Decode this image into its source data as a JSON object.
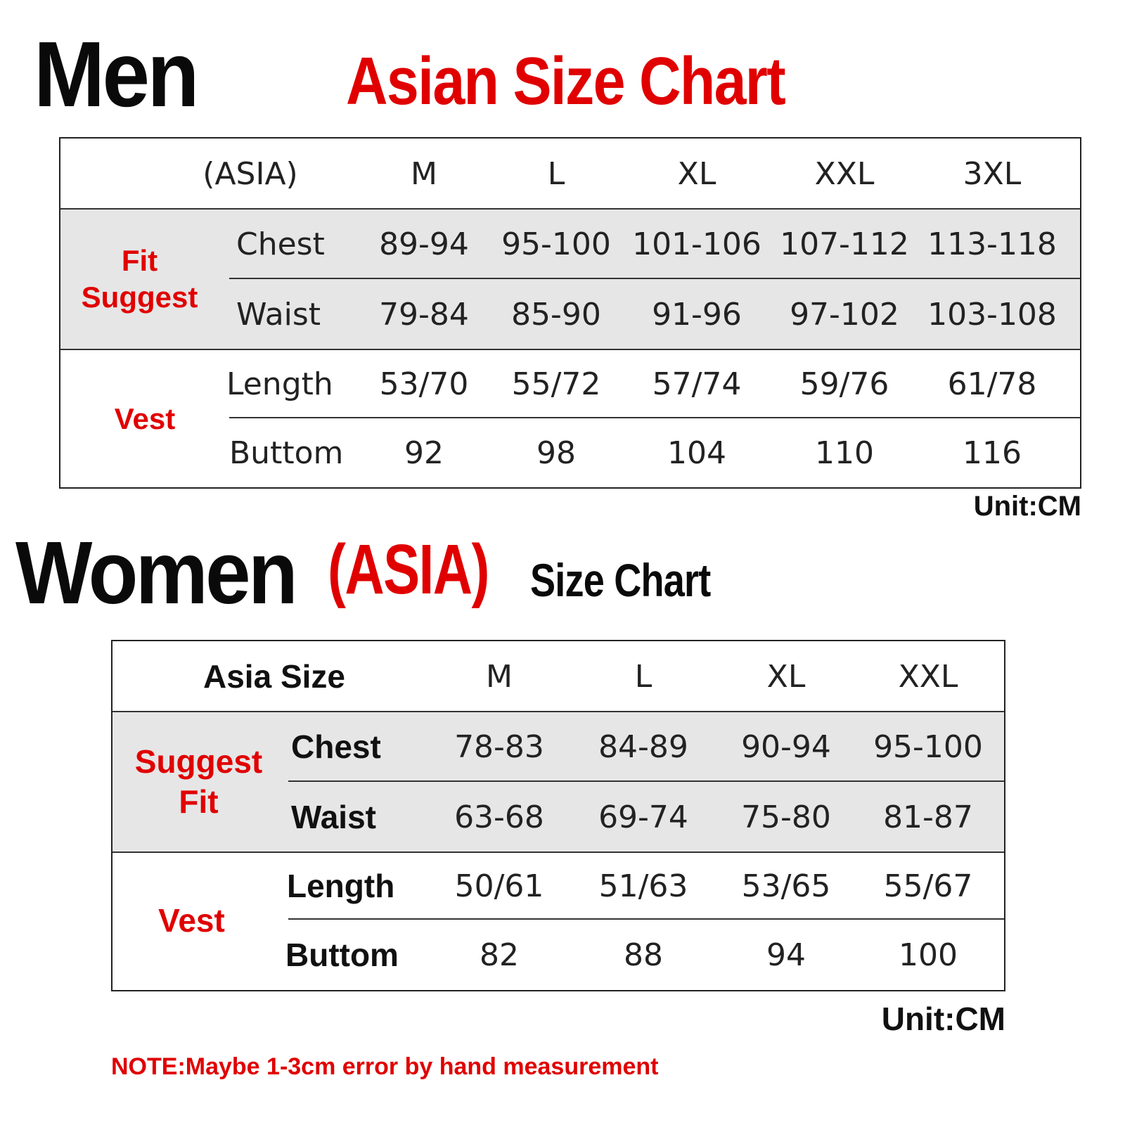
{
  "men": {
    "title": "Men",
    "subtitle": "Asian Size Chart",
    "header_label": "(ASIA)",
    "sizes": [
      "M",
      "L",
      "XL",
      "XXL",
      "3XL"
    ],
    "groups": [
      {
        "label_line1": "Fit",
        "label_line2": "Suggest"
      },
      {
        "label_line1": "Vest",
        "label_line2": ""
      }
    ],
    "rows": [
      {
        "label": "Chest",
        "values": [
          "89-94",
          "95-100",
          "101-106",
          "107-112",
          "113-118"
        ]
      },
      {
        "label": "Waist",
        "values": [
          "79-84",
          "85-90",
          "91-96",
          "97-102",
          "103-108"
        ]
      },
      {
        "label": "Length",
        "values": [
          "53/70",
          "55/72",
          "57/74",
          "59/76",
          "61/78"
        ]
      },
      {
        "label": "Buttom",
        "values": [
          "92",
          "98",
          "104",
          "110",
          "116"
        ]
      }
    ],
    "unit": "Unit:CM"
  },
  "women": {
    "title": "Women",
    "subtitle_red": "(ASIA)",
    "subtitle_black": "Size Chart",
    "header_label": "Asia Size",
    "sizes": [
      "M",
      "L",
      "XL",
      "XXL"
    ],
    "groups": [
      {
        "label_line1": "Suggest",
        "label_line2": "Fit"
      },
      {
        "label_line1": "Vest",
        "label_line2": ""
      }
    ],
    "rows": [
      {
        "label": "Chest",
        "values": [
          "78-83",
          "84-89",
          "90-94",
          "95-100"
        ]
      },
      {
        "label": "Waist",
        "values": [
          "63-68",
          "69-74",
          "75-80",
          "81-87"
        ]
      },
      {
        "label": "Length",
        "values": [
          "50/61",
          "51/63",
          "53/65",
          "55/67"
        ]
      },
      {
        "label": "Buttom",
        "values": [
          "82",
          "88",
          "94",
          "100"
        ]
      }
    ],
    "unit": "Unit:CM"
  },
  "note": "NOTE:Maybe 1-3cm error by hand measurement",
  "colors": {
    "accent_red": "#e00000",
    "band_gray": "#e6e6e6",
    "text": "#111111"
  }
}
